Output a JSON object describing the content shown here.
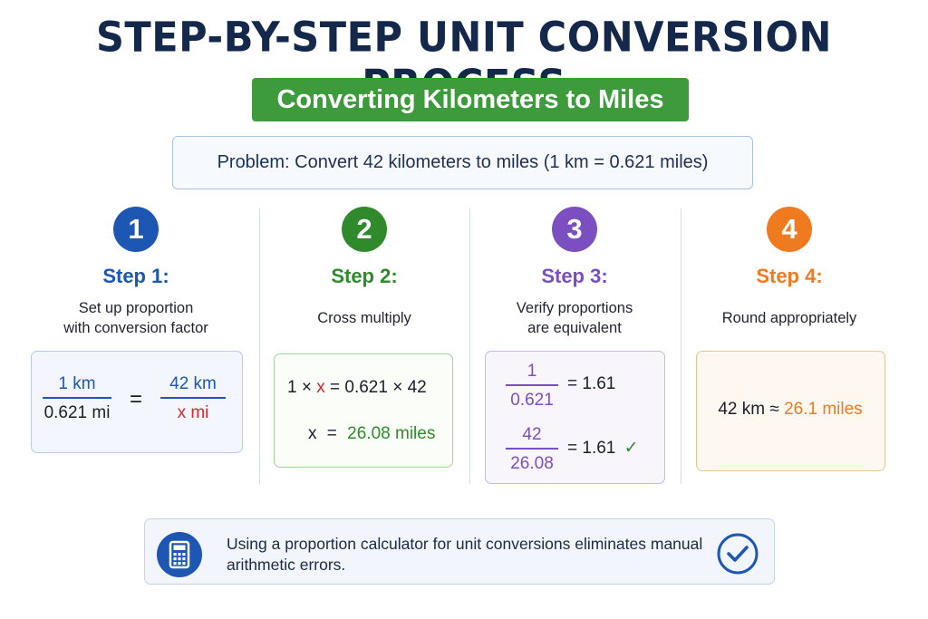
{
  "header": {
    "title": "STEP-BY-STEP UNIT CONVERSION PROCESS",
    "subtitle": "Converting Kilometers to Miles"
  },
  "problem": {
    "label": "Problem:",
    "text": "Convert 42 kilometers to miles (1 km = 0.621 miles)"
  },
  "colors": {
    "step1": "#1d56b3",
    "step2": "#2f8a2b",
    "step3": "#7b4fc0",
    "step4": "#ef7a1f"
  },
  "steps": [
    {
      "number": "1",
      "title": "Step 1:",
      "desc_lines": [
        "Set up proportion",
        "with conversion factor"
      ],
      "eq": {
        "frac1_top": "1 km",
        "frac1_bottom": "0.621 mi",
        "equals": "=",
        "frac2_top": "42 km",
        "frac2_bottom": "x mi"
      }
    },
    {
      "number": "2",
      "title": "Step 2:",
      "desc_lines": [
        "Cross multiply"
      ],
      "line1": {
        "a": "1 ×",
        "x": "x",
        "rest": "= 0.621 × 42"
      },
      "line2": {
        "x": "x",
        "eq": "=",
        "value": "26.08 miles"
      }
    },
    {
      "number": "3",
      "title": "Step 3:",
      "desc_lines": [
        "Verify proportions",
        "are equivalent"
      ],
      "row1": {
        "top": "1",
        "bottom": "0.621",
        "result": "= 1.61"
      },
      "row2": {
        "top": "42",
        "bottom": "26.08",
        "result": "= 1.61",
        "check": "✓"
      }
    },
    {
      "number": "4",
      "title": "Step 4:",
      "desc_lines": [
        "Round appropriately"
      ],
      "result": {
        "prefix": "42 km ≈",
        "value": "26.1 miles"
      }
    }
  ],
  "note": {
    "text": "Using a proportion calculator for unit conversions eliminates manual arithmetic errors.",
    "icon": "calculator-icon",
    "check_icon": "check-circle-icon"
  }
}
